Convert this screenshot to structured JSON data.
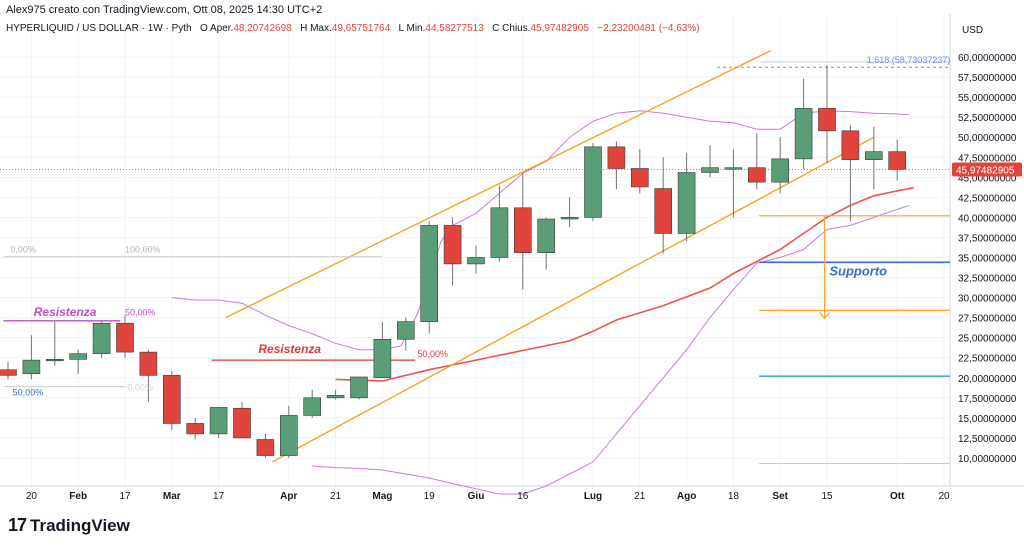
{
  "header": {
    "author_line": "Alex975 creato con TradingView.com, Ott 08, 2025 14:30 UTC+2",
    "symbol": "HYPERLIQUID / US DOLLAR · 1W · Pyth",
    "open_label": "O",
    "open_prefix": "Aper.",
    "open": "48,20742698",
    "high_label": "H",
    "high_prefix": "Max.",
    "high": "49,65751764",
    "low_label": "L",
    "low_prefix": "Min.",
    "low": "44,58277513",
    "close_label": "C",
    "close_prefix": "Chius.",
    "close": "45,97482905",
    "change": "−2,23200481 (−4,63%)"
  },
  "logo": {
    "mark": "17",
    "text": "TradingView"
  },
  "colors": {
    "up": "#5a9e78",
    "down": "#e0443c",
    "channel": "#f5a623",
    "ma": "#ef5350",
    "bands": "#c77dd9",
    "support": "#3a6bd1",
    "teal": "#27a8b8",
    "fib": "#f5a623",
    "resistance_purple": "#c04fbf",
    "resistance_red": "#d93b3b"
  },
  "chart_data": {
    "type": "candlestick",
    "title": "HYPERLIQUID / US DOLLAR · 1W · Pyth",
    "currency": "USD",
    "ylim": [
      6.5,
      62.5
    ],
    "y_ticks": [
      "10,00000000",
      "12,50000000",
      "15,00000000",
      "17,50000000",
      "20,00000000",
      "22,50000000",
      "25,00000000",
      "27,50000000",
      "30,00000000",
      "32,50000000",
      "35,00000000",
      "37,50000000",
      "40,00000000",
      "42,50000000",
      "45,00000000",
      "47,50000000",
      "50,00000000",
      "52,50000000",
      "55,00000000",
      "57,50000000",
      "60,00000000"
    ],
    "y_tick_values": [
      10,
      12.5,
      15,
      17.5,
      20,
      22.5,
      25,
      27.5,
      30,
      32.5,
      35,
      37.5,
      40,
      42.5,
      45,
      47.5,
      50,
      52.5,
      55,
      57.5,
      60
    ],
    "x_ticks": [
      {
        "label": "20",
        "i": 1
      },
      {
        "label": "Feb",
        "i": 3
      },
      {
        "label": "17",
        "i": 5
      },
      {
        "label": "Mar",
        "i": 7
      },
      {
        "label": "17",
        "i": 9
      },
      {
        "label": "Apr",
        "i": 12
      },
      {
        "label": "21",
        "i": 14
      },
      {
        "label": "Mag",
        "i": 16
      },
      {
        "label": "19",
        "i": 18
      },
      {
        "label": "Giu",
        "i": 20
      },
      {
        "label": "16",
        "i": 22
      },
      {
        "label": "Lug",
        "i": 25
      },
      {
        "label": "21",
        "i": 27
      },
      {
        "label": "Ago",
        "i": 29
      },
      {
        "label": "18",
        "i": 31
      },
      {
        "label": "Set",
        "i": 33
      },
      {
        "label": "15",
        "i": 35
      },
      {
        "label": "Ott",
        "i": 38
      },
      {
        "label": "20",
        "i": 40
      }
    ],
    "candles": [
      {
        "o": 21,
        "h": 22,
        "l": 19.8,
        "c": 20.3
      },
      {
        "o": 20.5,
        "h": 25.3,
        "l": 19.8,
        "c": 22.2
      },
      {
        "o": 22.2,
        "h": 27,
        "l": 21.5,
        "c": 22.3
      },
      {
        "o": 22.3,
        "h": 23.5,
        "l": 20.5,
        "c": 23
      },
      {
        "o": 23,
        "h": 27,
        "l": 22.5,
        "c": 26.8
      },
      {
        "o": 26.8,
        "h": 27.8,
        "l": 22.5,
        "c": 23.2
      },
      {
        "o": 23.2,
        "h": 23.5,
        "l": 17,
        "c": 20.3
      },
      {
        "o": 20.3,
        "h": 20.8,
        "l": 13.5,
        "c": 14.3
      },
      {
        "o": 14.3,
        "h": 15,
        "l": 12.3,
        "c": 13
      },
      {
        "o": 13,
        "h": 16.3,
        "l": 12.5,
        "c": 16.3
      },
      {
        "o": 16.2,
        "h": 17,
        "l": 12.5,
        "c": 12.5
      },
      {
        "o": 12.3,
        "h": 13,
        "l": 10,
        "c": 10.3
      },
      {
        "o": 10.3,
        "h": 16.5,
        "l": 10,
        "c": 15.3
      },
      {
        "o": 15.3,
        "h": 18.5,
        "l": 15,
        "c": 17.5
      },
      {
        "o": 17.5,
        "h": 18.5,
        "l": 17.3,
        "c": 17.8
      },
      {
        "o": 17.5,
        "h": 20,
        "l": 17.3,
        "c": 20.1
      },
      {
        "o": 20,
        "h": 27,
        "l": 20,
        "c": 24.8
      },
      {
        "o": 24.8,
        "h": 27.5,
        "l": 23.4,
        "c": 27
      },
      {
        "o": 27,
        "h": 39.5,
        "l": 25.5,
        "c": 39
      },
      {
        "o": 39,
        "h": 40,
        "l": 31.5,
        "c": 34.2
      },
      {
        "o": 34.2,
        "h": 36.5,
        "l": 33,
        "c": 35
      },
      {
        "o": 35,
        "h": 44,
        "l": 34.5,
        "c": 41.2
      },
      {
        "o": 41.2,
        "h": 45.5,
        "l": 31,
        "c": 35.6
      },
      {
        "o": 35.6,
        "h": 40,
        "l": 33.5,
        "c": 39.8
      },
      {
        "o": 39.8,
        "h": 42.5,
        "l": 38.8,
        "c": 40
      },
      {
        "o": 40,
        "h": 49.3,
        "l": 39.5,
        "c": 48.8
      },
      {
        "o": 48.8,
        "h": 49.5,
        "l": 43.5,
        "c": 46.1
      },
      {
        "o": 46.1,
        "h": 48.5,
        "l": 43,
        "c": 43.8
      },
      {
        "o": 43.6,
        "h": 47.5,
        "l": 35.5,
        "c": 38
      },
      {
        "o": 38,
        "h": 48,
        "l": 37,
        "c": 45.6
      },
      {
        "o": 45.6,
        "h": 49,
        "l": 45,
        "c": 46.2
      },
      {
        "o": 46.1,
        "h": 48.5,
        "l": 40,
        "c": 46.2
      },
      {
        "o": 46.2,
        "h": 50.5,
        "l": 43.5,
        "c": 44.4
      },
      {
        "o": 44.4,
        "h": 50,
        "l": 43,
        "c": 47.3
      },
      {
        "o": 47.3,
        "h": 57.3,
        "l": 46,
        "c": 53.6
      },
      {
        "o": 53.6,
        "h": 59,
        "l": 46.8,
        "c": 50.8
      },
      {
        "o": 50.8,
        "h": 51.5,
        "l": 39.5,
        "c": 47.2
      },
      {
        "o": 47.2,
        "h": 51.3,
        "l": 43.5,
        "c": 48.2
      },
      {
        "o": 48.2,
        "h": 49.7,
        "l": 44.6,
        "c": 46
      }
    ],
    "ma": [
      [
        7,
        null
      ]
    ],
    "moving_average": [
      [
        14,
        19.8
      ],
      [
        16,
        19.6
      ],
      [
        18,
        21
      ],
      [
        20,
        22.2
      ],
      [
        22,
        23.4
      ],
      [
        24,
        24.6
      ],
      [
        25,
        25.8
      ],
      [
        26,
        27.2
      ],
      [
        28,
        29
      ],
      [
        30,
        31.2
      ],
      [
        31,
        33
      ],
      [
        32,
        34.5
      ],
      [
        33,
        36
      ],
      [
        34,
        38
      ],
      [
        35,
        40
      ],
      [
        36,
        41.5
      ],
      [
        37,
        42.7
      ],
      [
        38,
        43.3
      ],
      [
        38.7,
        43.7
      ]
    ],
    "upper_band": [
      [
        7,
        30
      ],
      [
        8,
        29.7
      ],
      [
        9,
        29.7
      ],
      [
        10,
        29.3
      ],
      [
        11,
        27.8
      ],
      [
        12,
        26.5
      ],
      [
        13,
        25.5
      ],
      [
        14,
        24.3
      ],
      [
        15,
        23.5
      ],
      [
        16,
        23.5
      ],
      [
        16.8,
        24
      ],
      [
        17.5,
        28
      ],
      [
        18,
        32
      ],
      [
        18.5,
        37
      ],
      [
        19,
        39
      ],
      [
        20,
        40.5
      ],
      [
        21,
        43
      ],
      [
        22,
        45.5
      ],
      [
        23,
        47
      ],
      [
        24,
        50
      ],
      [
        25,
        52
      ],
      [
        26,
        53
      ],
      [
        27,
        53.3
      ],
      [
        28,
        53
      ],
      [
        29,
        52.5
      ],
      [
        30,
        52
      ],
      [
        31,
        51.8
      ],
      [
        32,
        51
      ],
      [
        33,
        51
      ],
      [
        34,
        53
      ],
      [
        35,
        53.3
      ],
      [
        36,
        53.2
      ],
      [
        37,
        53
      ],
      [
        38,
        52.9
      ],
      [
        38.5,
        52.8
      ]
    ],
    "lower_band": [
      [
        13,
        9
      ],
      [
        14,
        8.8
      ],
      [
        15,
        8.7
      ],
      [
        16,
        8.5
      ],
      [
        17,
        8
      ],
      [
        18,
        7.5
      ],
      [
        19,
        6.8
      ],
      [
        21,
        5.5
      ],
      [
        22,
        5.5
      ],
      [
        23,
        6.5
      ],
      [
        24,
        8
      ],
      [
        25,
        9.5
      ],
      [
        26,
        13
      ],
      [
        27,
        16.5
      ],
      [
        28,
        20
      ],
      [
        29,
        23.5
      ],
      [
        30,
        27.5
      ],
      [
        31,
        31
      ],
      [
        32,
        34.3
      ],
      [
        33,
        35
      ],
      [
        34,
        36
      ],
      [
        35,
        38.5
      ],
      [
        36,
        39
      ],
      [
        37,
        40
      ],
      [
        38,
        41
      ],
      [
        38.5,
        41.5
      ]
    ],
    "channel_upper": [
      [
        9.3,
        27.5
      ],
      [
        32.6,
        60.8
      ]
    ],
    "channel_lower": [
      [
        11.3,
        9.5
      ],
      [
        37,
        50
      ]
    ],
    "support_level": 34.4,
    "support_label": "Supporto",
    "fib_target_label": "1,618 (58,73037237)",
    "fib_target_value": 58.73,
    "fib_levels": [
      {
        "label": "0,00%",
        "value": 35.1
      },
      {
        "label": "100,00%",
        "value": 35.1
      },
      {
        "label": "50,00%",
        "value": 18.8
      },
      {
        "label": "50,00%",
        "value": 27.4
      },
      {
        "label": "0,00%",
        "value": 18.9
      },
      {
        "label": "50,00%",
        "value": 22.2
      }
    ],
    "resistances": [
      {
        "label": "Resistenza",
        "value": 27.1
      },
      {
        "label": "Resistenza",
        "value": 22.2
      }
    ],
    "right_panel": {
      "levels": [
        40.2,
        28.4,
        20.2,
        9.3,
        59.4
      ],
      "arrow_from": 40.2,
      "arrow_to": 27.4
    },
    "last_price_label": "45,97482905",
    "last_price": 45.97
  }
}
